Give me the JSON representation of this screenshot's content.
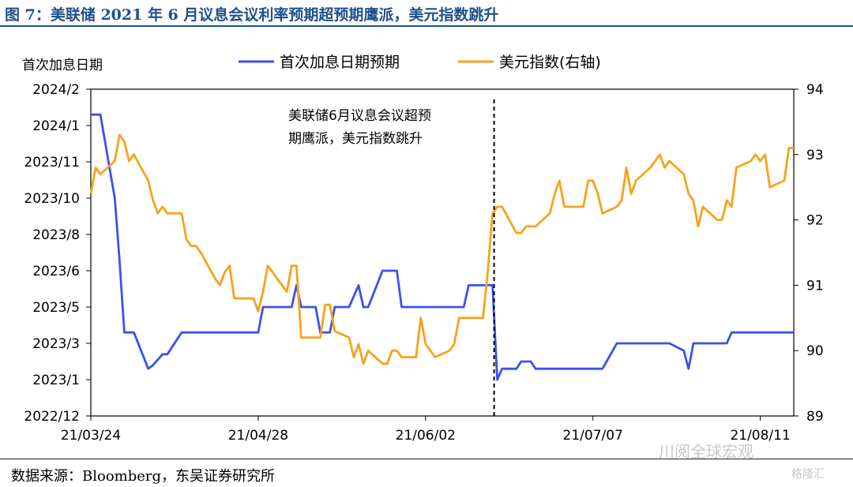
{
  "figure_title": "图 7：美联储 2021 年 6 月议息会议利率预期超预期鹰派，美元指数跳升",
  "source": "数据来源：Bloomberg，东吴证券研究所",
  "watermark": "川阅全球宏观",
  "watermark2": "格隆汇",
  "colors": {
    "series1": "#3c50f0",
    "series2": "#f7a21b",
    "title": "#1f4f8c"
  },
  "chart_data": {
    "type": "line",
    "left_axis_title": "首次加息日期",
    "annotation": [
      "美联储6月议息会议超预",
      "期鹰派，美元指数跳升"
    ],
    "event_date": "21/06/16",
    "x_ticks": [
      "21/03/24",
      "21/04/28",
      "21/06/02",
      "21/07/07",
      "21/08/11"
    ],
    "x_range": [
      "21/03/24",
      "21/08/18"
    ],
    "y_left": {
      "ticks": [
        "2022/12",
        "2023/1",
        "2023/3",
        "2023/5",
        "2023/6",
        "2023/8",
        "2023/10",
        "2023/11",
        "2024/1",
        "2024/2"
      ],
      "unit": "tick index (2022/12 = 0 … 2024/2 = 9)"
    },
    "y_right": {
      "ticks": [
        "89",
        "90",
        "91",
        "92",
        "93",
        "94"
      ],
      "ylim": [
        89,
        94
      ]
    },
    "series": [
      {
        "name": "首次加息日期预期",
        "axis": "left",
        "color": "#3c50f0",
        "points": [
          [
            "21/03/24",
            8.3
          ],
          [
            "21/03/25",
            8.3
          ],
          [
            "21/03/26",
            8.3
          ],
          [
            "21/03/29",
            6.0
          ],
          [
            "21/03/30",
            4.3
          ],
          [
            "21/03/31",
            2.3
          ],
          [
            "21/04/01",
            2.3
          ],
          [
            "21/04/02",
            2.3
          ],
          [
            "21/04/05",
            1.3
          ],
          [
            "21/04/06",
            1.4
          ],
          [
            "21/04/07",
            1.55
          ],
          [
            "21/04/08",
            1.7
          ],
          [
            "21/04/09",
            1.7
          ],
          [
            "21/04/12",
            2.3
          ],
          [
            "21/04/13",
            2.3
          ],
          [
            "21/04/14",
            2.3
          ],
          [
            "21/04/15",
            2.3
          ],
          [
            "21/04/16",
            2.3
          ],
          [
            "21/04/19",
            2.3
          ],
          [
            "21/04/20",
            2.3
          ],
          [
            "21/04/21",
            2.3
          ],
          [
            "21/04/22",
            2.3
          ],
          [
            "21/04/23",
            2.3
          ],
          [
            "21/04/26",
            2.3
          ],
          [
            "21/04/27",
            2.3
          ],
          [
            "21/04/28",
            2.3
          ],
          [
            "21/04/29",
            3.0
          ],
          [
            "21/04/30",
            3.0
          ],
          [
            "21/05/03",
            3.0
          ],
          [
            "21/05/04",
            3.0
          ],
          [
            "21/05/05",
            3.0
          ],
          [
            "21/05/06",
            3.6
          ],
          [
            "21/05/07",
            3.0
          ],
          [
            "21/05/10",
            3.0
          ],
          [
            "21/05/11",
            2.3
          ],
          [
            "21/05/12",
            2.3
          ],
          [
            "21/05/13",
            2.3
          ],
          [
            "21/05/14",
            3.0
          ],
          [
            "21/05/17",
            3.0
          ],
          [
            "21/05/18",
            3.3
          ],
          [
            "21/05/19",
            3.6
          ],
          [
            "21/05/20",
            3.0
          ],
          [
            "21/05/21",
            3.0
          ],
          [
            "21/05/24",
            4.0
          ],
          [
            "21/05/25",
            4.0
          ],
          [
            "21/05/26",
            4.0
          ],
          [
            "21/05/27",
            4.0
          ],
          [
            "21/05/28",
            3.0
          ],
          [
            "21/05/31",
            3.0
          ],
          [
            "21/06/01",
            3.0
          ],
          [
            "21/06/02",
            3.0
          ],
          [
            "21/06/03",
            3.0
          ],
          [
            "21/06/04",
            3.0
          ],
          [
            "21/06/07",
            3.0
          ],
          [
            "21/06/08",
            3.0
          ],
          [
            "21/06/09",
            3.0
          ],
          [
            "21/06/10",
            3.0
          ],
          [
            "21/06/11",
            3.6
          ],
          [
            "21/06/14",
            3.6
          ],
          [
            "21/06/15",
            3.6
          ],
          [
            "21/06/16",
            3.6
          ],
          [
            "21/06/17",
            1.0
          ],
          [
            "21/06/18",
            1.3
          ],
          [
            "21/06/21",
            1.3
          ],
          [
            "21/06/22",
            1.5
          ],
          [
            "21/06/23",
            1.5
          ],
          [
            "21/06/24",
            1.5
          ],
          [
            "21/06/25",
            1.3
          ],
          [
            "21/06/28",
            1.3
          ],
          [
            "21/06/29",
            1.3
          ],
          [
            "21/06/30",
            1.3
          ],
          [
            "21/07/01",
            1.3
          ],
          [
            "21/07/02",
            1.3
          ],
          [
            "21/07/05",
            1.3
          ],
          [
            "21/07/06",
            1.3
          ],
          [
            "21/07/07",
            1.3
          ],
          [
            "21/07/08",
            1.3
          ],
          [
            "21/07/09",
            1.3
          ],
          [
            "21/07/12",
            2.0
          ],
          [
            "21/07/13",
            2.0
          ],
          [
            "21/07/14",
            2.0
          ],
          [
            "21/07/15",
            2.0
          ],
          [
            "21/07/16",
            2.0
          ],
          [
            "21/07/19",
            2.0
          ],
          [
            "21/07/20",
            2.0
          ],
          [
            "21/07/21",
            2.0
          ],
          [
            "21/07/22",
            2.0
          ],
          [
            "21/07/23",
            2.0
          ],
          [
            "21/07/26",
            1.8
          ],
          [
            "21/07/27",
            1.3
          ],
          [
            "21/07/28",
            2.0
          ],
          [
            "21/07/29",
            2.0
          ],
          [
            "21/07/30",
            2.0
          ],
          [
            "21/08/02",
            2.0
          ],
          [
            "21/08/03",
            2.0
          ],
          [
            "21/08/04",
            2.0
          ],
          [
            "21/08/05",
            2.3
          ],
          [
            "21/08/06",
            2.3
          ],
          [
            "21/08/09",
            2.3
          ],
          [
            "21/08/10",
            2.3
          ],
          [
            "21/08/11",
            2.3
          ],
          [
            "21/08/12",
            2.3
          ],
          [
            "21/08/13",
            2.3
          ],
          [
            "21/08/16",
            2.3
          ],
          [
            "21/08/17",
            2.3
          ],
          [
            "21/08/18",
            2.3
          ]
        ]
      },
      {
        "name": "美元指数(右轴)",
        "axis": "right",
        "color": "#f7a21b",
        "points": [
          [
            "21/03/24",
            92.4
          ],
          [
            "21/03/25",
            92.8
          ],
          [
            "21/03/26",
            92.7
          ],
          [
            "21/03/29",
            92.9
          ],
          [
            "21/03/30",
            93.3
          ],
          [
            "21/03/31",
            93.2
          ],
          [
            "21/04/01",
            92.9
          ],
          [
            "21/04/02",
            93.0
          ],
          [
            "21/04/05",
            92.6
          ],
          [
            "21/04/06",
            92.3
          ],
          [
            "21/04/07",
            92.1
          ],
          [
            "21/04/08",
            92.2
          ],
          [
            "21/04/09",
            92.1
          ],
          [
            "21/04/12",
            92.1
          ],
          [
            "21/04/13",
            91.7
          ],
          [
            "21/04/14",
            91.6
          ],
          [
            "21/04/15",
            91.6
          ],
          [
            "21/04/16",
            91.5
          ],
          [
            "21/04/19",
            91.1
          ],
          [
            "21/04/20",
            91.0
          ],
          [
            "21/04/21",
            91.2
          ],
          [
            "21/04/22",
            91.3
          ],
          [
            "21/04/23",
            90.8
          ],
          [
            "21/04/26",
            90.8
          ],
          [
            "21/04/27",
            90.8
          ],
          [
            "21/04/28",
            90.6
          ],
          [
            "21/04/29",
            90.9
          ],
          [
            "21/04/30",
            91.3
          ],
          [
            "21/05/03",
            91.0
          ],
          [
            "21/05/04",
            90.9
          ],
          [
            "21/05/05",
            91.3
          ],
          [
            "21/05/06",
            91.3
          ],
          [
            "21/05/07",
            90.2
          ],
          [
            "21/05/10",
            90.2
          ],
          [
            "21/05/11",
            90.2
          ],
          [
            "21/05/12",
            90.7
          ],
          [
            "21/05/13",
            90.7
          ],
          [
            "21/05/14",
            90.3
          ],
          [
            "21/05/17",
            90.2
          ],
          [
            "21/05/18",
            89.9
          ],
          [
            "21/05/19",
            90.1
          ],
          [
            "21/05/20",
            89.8
          ],
          [
            "21/05/21",
            90.0
          ],
          [
            "21/05/24",
            89.8
          ],
          [
            "21/05/25",
            89.8
          ],
          [
            "21/05/26",
            90.0
          ],
          [
            "21/05/27",
            90.0
          ],
          [
            "21/05/28",
            89.9
          ],
          [
            "21/05/31",
            89.9
          ],
          [
            "21/06/01",
            90.5
          ],
          [
            "21/06/02",
            90.1
          ],
          [
            "21/06/03",
            90.0
          ],
          [
            "21/06/04",
            89.9
          ],
          [
            "21/06/07",
            90.0
          ],
          [
            "21/06/08",
            90.1
          ],
          [
            "21/06/09",
            90.5
          ],
          [
            "21/06/10",
            90.5
          ],
          [
            "21/06/11",
            90.5
          ],
          [
            "21/06/14",
            90.5
          ],
          [
            "21/06/15",
            91.2
          ],
          [
            "21/06/16",
            92.1
          ],
          [
            "21/06/17",
            92.2
          ],
          [
            "21/06/18",
            92.2
          ],
          [
            "21/06/21",
            91.8
          ],
          [
            "21/06/22",
            91.8
          ],
          [
            "21/06/23",
            91.9
          ],
          [
            "21/06/24",
            91.9
          ],
          [
            "21/06/25",
            91.9
          ],
          [
            "21/06/28",
            92.1
          ],
          [
            "21/06/29",
            92.4
          ],
          [
            "21/06/30",
            92.6
          ],
          [
            "21/07/01",
            92.2
          ],
          [
            "21/07/02",
            92.2
          ],
          [
            "21/07/05",
            92.2
          ],
          [
            "21/07/06",
            92.6
          ],
          [
            "21/07/07",
            92.6
          ],
          [
            "21/07/08",
            92.4
          ],
          [
            "21/07/09",
            92.1
          ],
          [
            "21/07/12",
            92.2
          ],
          [
            "21/07/13",
            92.3
          ],
          [
            "21/07/14",
            92.8
          ],
          [
            "21/07/15",
            92.4
          ],
          [
            "21/07/16",
            92.6
          ],
          [
            "21/07/19",
            92.8
          ],
          [
            "21/07/20",
            92.9
          ],
          [
            "21/07/21",
            93.0
          ],
          [
            "21/07/22",
            92.8
          ],
          [
            "21/07/23",
            92.9
          ],
          [
            "21/07/26",
            92.7
          ],
          [
            "21/07/27",
            92.4
          ],
          [
            "21/07/28",
            92.3
          ],
          [
            "21/07/29",
            91.9
          ],
          [
            "21/07/30",
            92.2
          ],
          [
            "21/08/02",
            92.0
          ],
          [
            "21/08/03",
            92.0
          ],
          [
            "21/08/04",
            92.3
          ],
          [
            "21/08/05",
            92.2
          ],
          [
            "21/08/06",
            92.8
          ],
          [
            "21/08/09",
            92.9
          ],
          [
            "21/08/10",
            93.0
          ],
          [
            "21/08/11",
            92.9
          ],
          [
            "21/08/12",
            93.0
          ],
          [
            "21/08/13",
            92.5
          ],
          [
            "21/08/16",
            92.6
          ],
          [
            "21/08/17",
            93.1
          ],
          [
            "21/08/18",
            93.1
          ]
        ]
      }
    ]
  }
}
